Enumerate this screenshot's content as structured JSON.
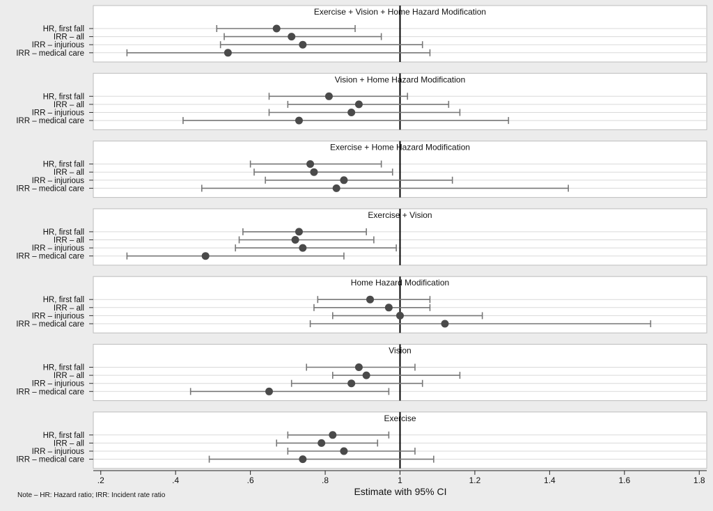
{
  "chart_data": {
    "type": "forest",
    "xlabel": "Estimate with 95% CI",
    "x_ticks": [
      {
        "value": 0.2,
        "label": ".2"
      },
      {
        "value": 0.4,
        "label": ".4"
      },
      {
        "value": 0.6,
        "label": ".6"
      },
      {
        "value": 0.8,
        "label": ".8"
      },
      {
        "value": 1.0,
        "label": "1"
      },
      {
        "value": 1.2,
        "label": "1.2"
      },
      {
        "value": 1.4,
        "label": "1.4"
      },
      {
        "value": 1.6,
        "label": "1.6"
      },
      {
        "value": 1.8,
        "label": "1.8"
      }
    ],
    "xlim": [
      0.18,
      1.82
    ],
    "reference_line": 1,
    "grid": true,
    "note": "Note – HR: Hazard ratio; IRR: Incident rate ratio",
    "row_labels": [
      "HR, first fall",
      "IRR – all",
      "IRR – injurious",
      "IRR – medical care"
    ],
    "panels": [
      {
        "title": "Exercise + Vision + Home Hazard Modification",
        "rows": [
          {
            "est": 0.67,
            "lo": 0.51,
            "hi": 0.88
          },
          {
            "est": 0.71,
            "lo": 0.53,
            "hi": 0.95
          },
          {
            "est": 0.74,
            "lo": 0.52,
            "hi": 1.06
          },
          {
            "est": 0.54,
            "lo": 0.27,
            "hi": 1.08
          }
        ]
      },
      {
        "title": "Vision + Home Hazard Modification",
        "rows": [
          {
            "est": 0.81,
            "lo": 0.65,
            "hi": 1.02
          },
          {
            "est": 0.89,
            "lo": 0.7,
            "hi": 1.13
          },
          {
            "est": 0.87,
            "lo": 0.65,
            "hi": 1.16
          },
          {
            "est": 0.73,
            "lo": 0.42,
            "hi": 1.29
          }
        ]
      },
      {
        "title": "Exercise + Home Hazard Modification",
        "rows": [
          {
            "est": 0.76,
            "lo": 0.6,
            "hi": 0.95
          },
          {
            "est": 0.77,
            "lo": 0.61,
            "hi": 0.98
          },
          {
            "est": 0.85,
            "lo": 0.64,
            "hi": 1.14
          },
          {
            "est": 0.83,
            "lo": 0.47,
            "hi": 1.45
          }
        ]
      },
      {
        "title": "Exercise + Vision",
        "rows": [
          {
            "est": 0.73,
            "lo": 0.58,
            "hi": 0.91
          },
          {
            "est": 0.72,
            "lo": 0.57,
            "hi": 0.93
          },
          {
            "est": 0.74,
            "lo": 0.56,
            "hi": 0.99
          },
          {
            "est": 0.48,
            "lo": 0.27,
            "hi": 0.85
          }
        ]
      },
      {
        "title": "Home Hazard Modification",
        "rows": [
          {
            "est": 0.92,
            "lo": 0.78,
            "hi": 1.08
          },
          {
            "est": 0.97,
            "lo": 0.77,
            "hi": 1.08
          },
          {
            "est": 1.0,
            "lo": 0.82,
            "hi": 1.22
          },
          {
            "est": 1.12,
            "lo": 0.76,
            "hi": 1.67
          }
        ]
      },
      {
        "title": "Vision",
        "rows": [
          {
            "est": 0.89,
            "lo": 0.75,
            "hi": 1.04
          },
          {
            "est": 0.91,
            "lo": 0.82,
            "hi": 1.16
          },
          {
            "est": 0.87,
            "lo": 0.71,
            "hi": 1.06
          },
          {
            "est": 0.65,
            "lo": 0.44,
            "hi": 0.97
          }
        ]
      },
      {
        "title": "Exercise",
        "rows": [
          {
            "est": 0.82,
            "lo": 0.7,
            "hi": 0.97
          },
          {
            "est": 0.79,
            "lo": 0.67,
            "hi": 0.94
          },
          {
            "est": 0.85,
            "lo": 0.7,
            "hi": 1.04
          },
          {
            "est": 0.74,
            "lo": 0.49,
            "hi": 1.09
          }
        ]
      }
    ],
    "colors": {
      "marker": "#4a4a4a",
      "ci": "#777777",
      "reference": "#000000",
      "panel_bg": "#ffffff",
      "page_bg": "#ececec",
      "grid": "#d9d9d9"
    }
  }
}
